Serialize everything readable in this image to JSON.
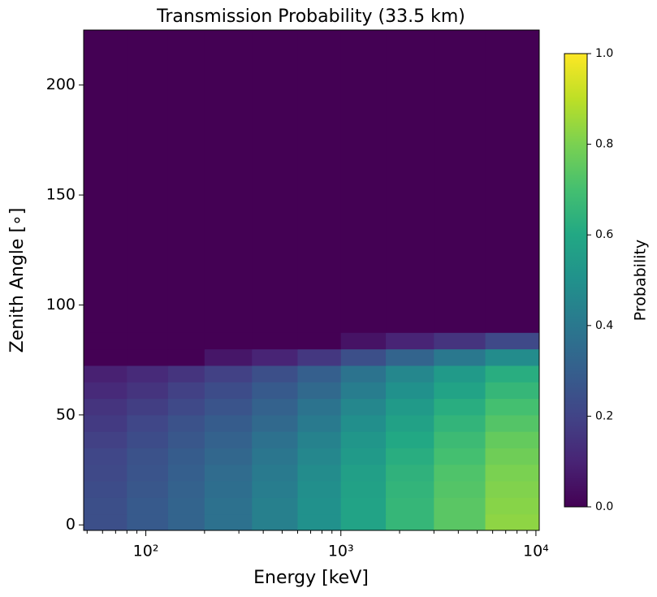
{
  "chart_data": {
    "type": "heatmap",
    "title": "Transmission Probability (33.5 km)",
    "x_label": "Energy [keV]",
    "y_label": "Zenith Angle [∘]",
    "colorbar_label": "Probability",
    "colormap": "viridis",
    "x_log": true,
    "x_edges": [
      48,
      80,
      130,
      200,
      350,
      600,
      1000,
      1700,
      3000,
      5500,
      10400
    ],
    "y_edges": [
      -2.5,
      5,
      12.5,
      20,
      27.5,
      35,
      42.5,
      50,
      57.5,
      65,
      72.5,
      80,
      87.5,
      225
    ],
    "values": [
      [
        0.24,
        0.28,
        0.32,
        0.37,
        0.43,
        0.5,
        0.58,
        0.66,
        0.74,
        0.83
      ],
      [
        0.24,
        0.28,
        0.32,
        0.37,
        0.43,
        0.5,
        0.58,
        0.66,
        0.74,
        0.82
      ],
      [
        0.23,
        0.27,
        0.31,
        0.36,
        0.42,
        0.49,
        0.57,
        0.65,
        0.73,
        0.81
      ],
      [
        0.22,
        0.26,
        0.3,
        0.35,
        0.41,
        0.48,
        0.56,
        0.64,
        0.72,
        0.8
      ],
      [
        0.21,
        0.25,
        0.29,
        0.33,
        0.39,
        0.46,
        0.54,
        0.62,
        0.7,
        0.78
      ],
      [
        0.19,
        0.23,
        0.27,
        0.31,
        0.37,
        0.44,
        0.52,
        0.6,
        0.68,
        0.76
      ],
      [
        0.17,
        0.21,
        0.25,
        0.29,
        0.34,
        0.41,
        0.49,
        0.57,
        0.65,
        0.73
      ],
      [
        0.15,
        0.18,
        0.22,
        0.26,
        0.31,
        0.38,
        0.46,
        0.54,
        0.62,
        0.7
      ],
      [
        0.12,
        0.15,
        0.19,
        0.23,
        0.28,
        0.34,
        0.42,
        0.5,
        0.58,
        0.66
      ],
      [
        0.09,
        0.12,
        0.15,
        0.19,
        0.24,
        0.3,
        0.38,
        0.46,
        0.54,
        0.62
      ],
      [
        0,
        0,
        0,
        0.06,
        0.1,
        0.16,
        0.24,
        0.32,
        0.4,
        0.48
      ],
      [
        0,
        0,
        0,
        0,
        0,
        0,
        0.05,
        0.1,
        0.15,
        0.22
      ],
      [
        0,
        0,
        0,
        0,
        0,
        0,
        0,
        0,
        0,
        0
      ]
    ],
    "xlim": [
      48,
      10400
    ],
    "ylim": [
      -2.5,
      225
    ],
    "xticks": [
      {
        "value": 100,
        "label": "10²"
      },
      {
        "value": 1000,
        "label": "10³"
      },
      {
        "value": 10000,
        "label": "10⁴"
      }
    ],
    "xminorticks": [
      50,
      60,
      70,
      80,
      90,
      200,
      300,
      400,
      500,
      600,
      700,
      800,
      900,
      2000,
      3000,
      4000,
      5000,
      6000,
      7000,
      8000,
      9000
    ],
    "yticks": [
      0,
      50,
      100,
      150,
      200
    ],
    "clim": [
      0,
      1
    ],
    "cticks": [
      {
        "value": 0,
        "label": "0.0"
      },
      {
        "value": 0.2,
        "label": "0.2"
      },
      {
        "value": 0.4,
        "label": "0.4"
      },
      {
        "value": 0.6,
        "label": "0.6"
      },
      {
        "value": 0.8,
        "label": "0.8"
      },
      {
        "value": 1,
        "label": "1.0"
      }
    ]
  }
}
